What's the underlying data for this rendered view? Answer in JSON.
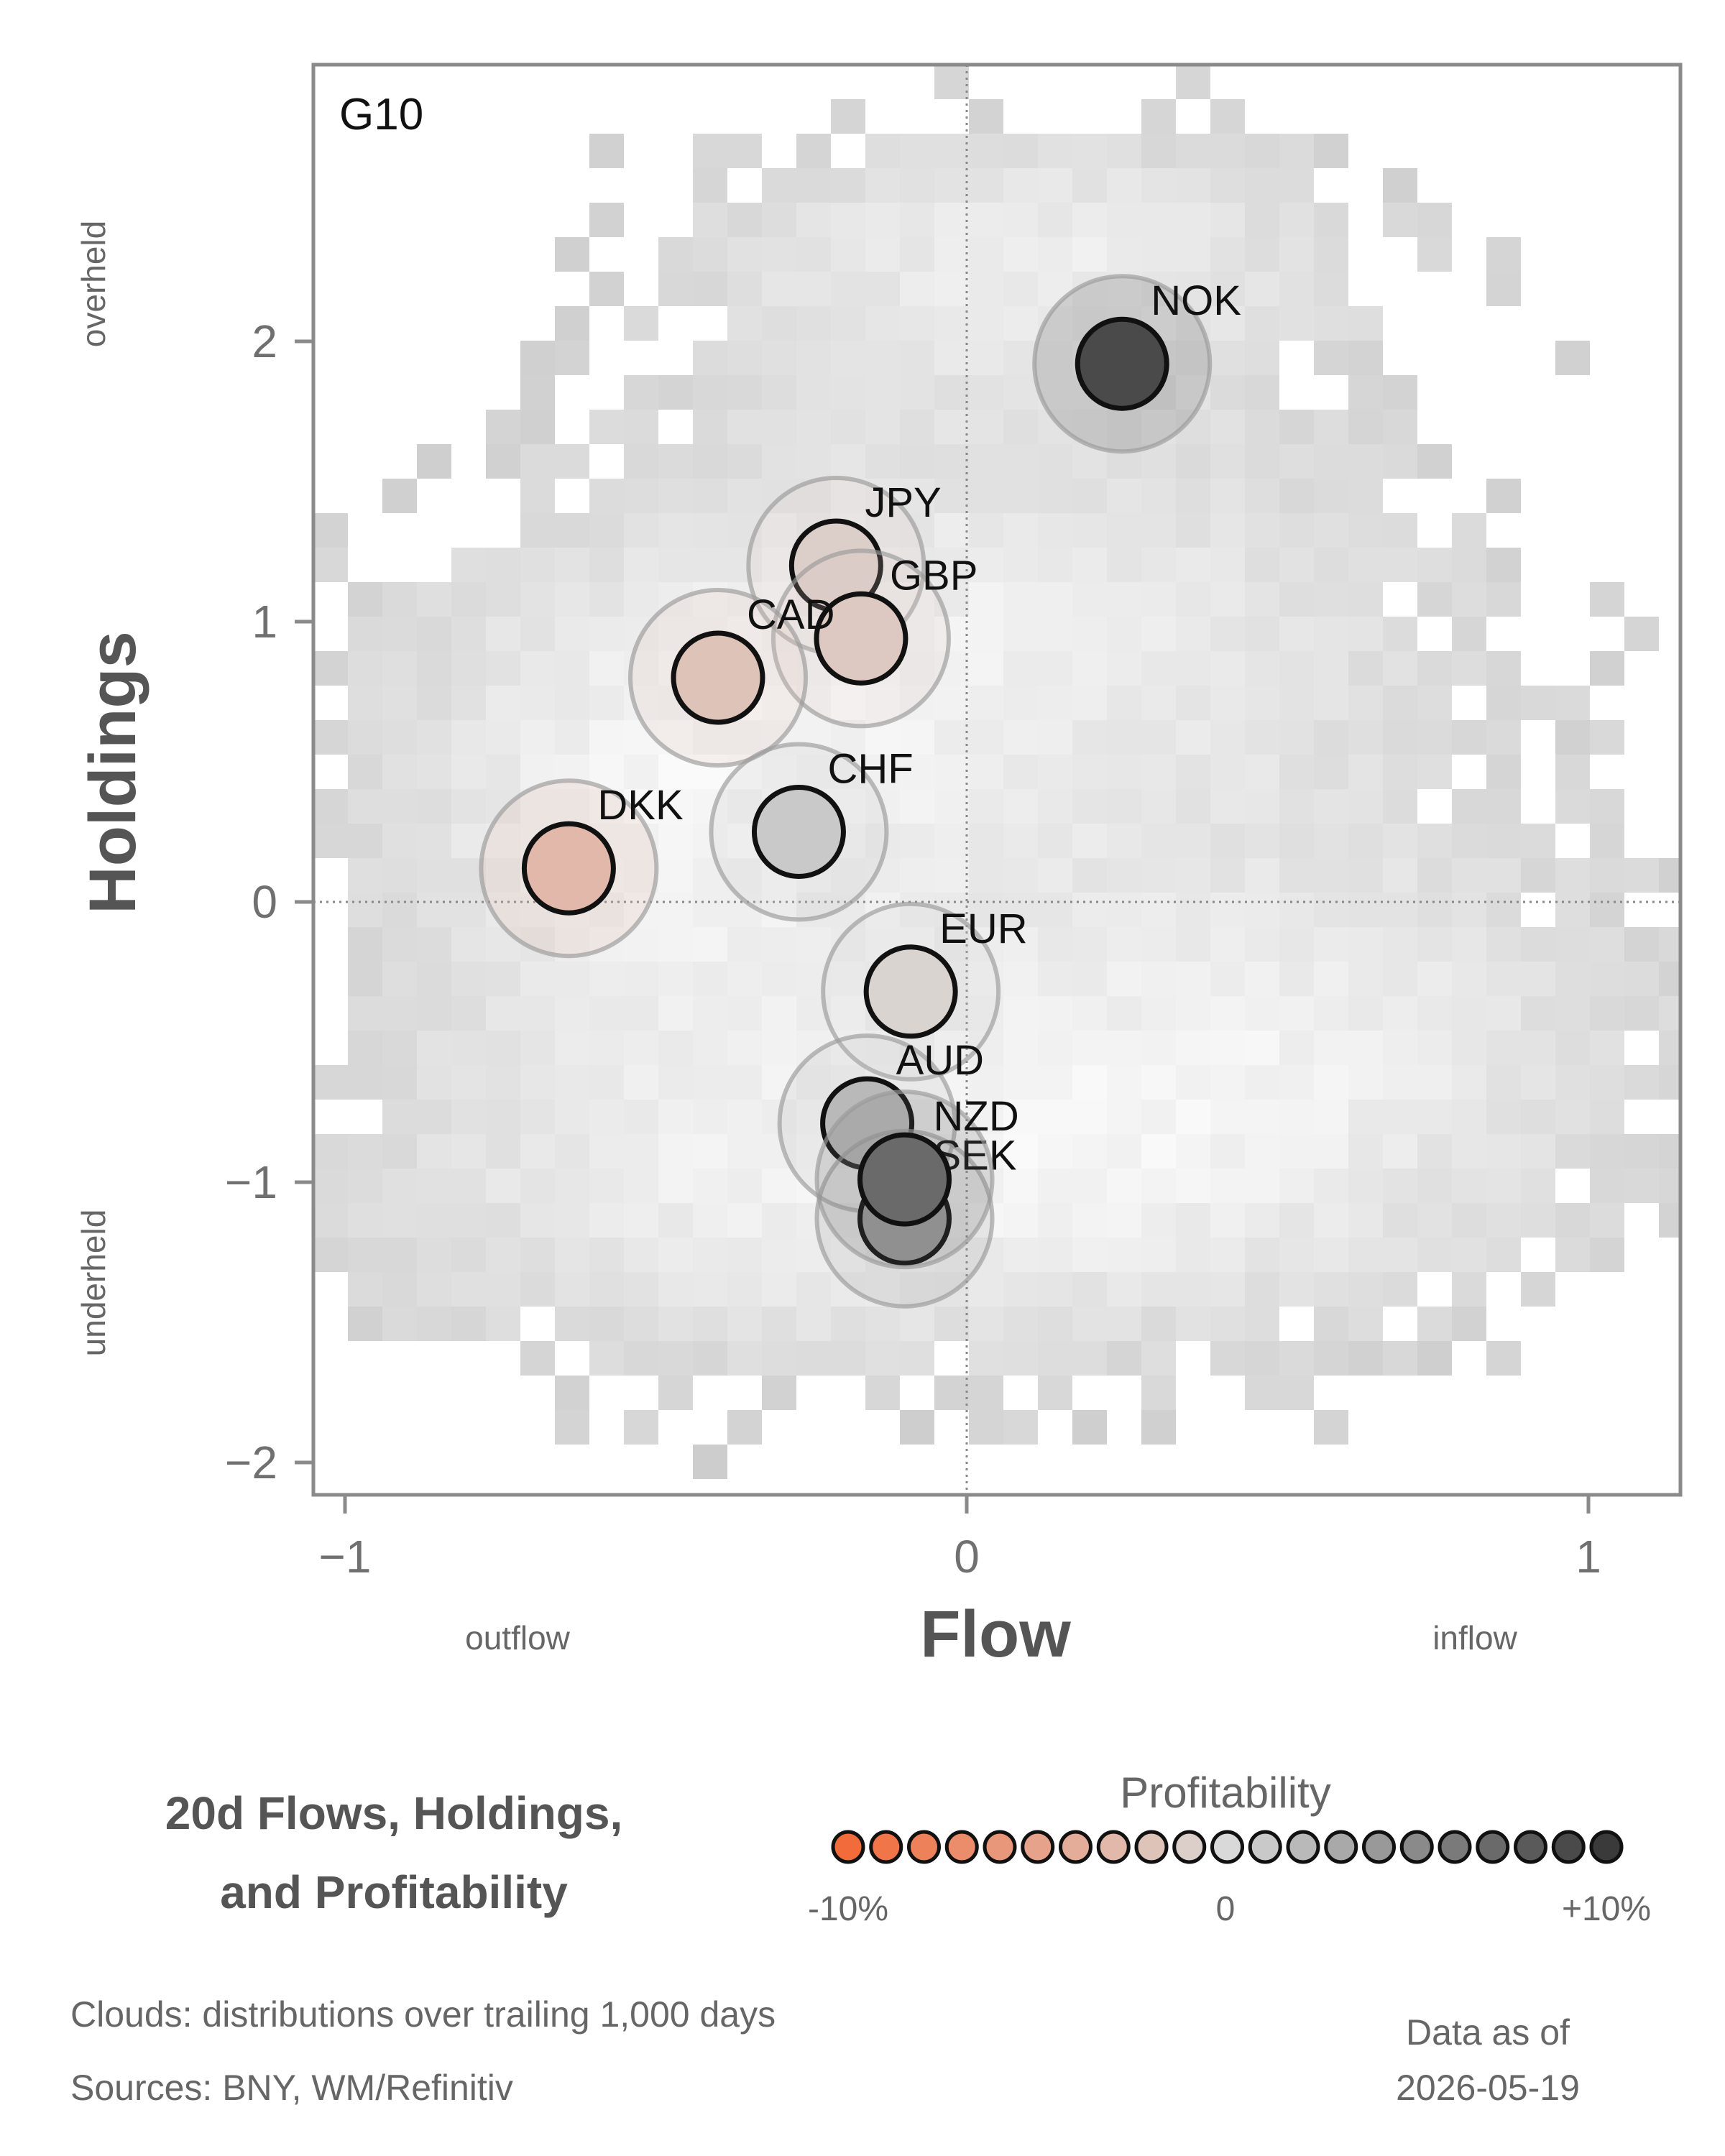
{
  "chart_data": {
    "type": "scatter",
    "panel_label": "G10",
    "xlabel": "Flow",
    "ylabel": "Holdings",
    "x_ticks": [
      -1,
      0,
      1
    ],
    "y_ticks": [
      -2,
      -1,
      0,
      1,
      2
    ],
    "xlim": [
      -1.05,
      1.15
    ],
    "ylim": [
      -2.15,
      2.98
    ],
    "x_side_labels": {
      "negative": "outflow",
      "positive": "inflow"
    },
    "y_side_labels": {
      "positive": "overheld",
      "negative": "underheld"
    },
    "reference_lines": {
      "x": 0,
      "y": 0
    },
    "points": [
      {
        "label": "NOK",
        "x": 0.25,
        "y": 1.92,
        "profitability": 9
      },
      {
        "label": "JPY",
        "x": -0.21,
        "y": 1.2,
        "profitability": -1
      },
      {
        "label": "GBP",
        "x": -0.17,
        "y": 0.94,
        "profitability": -1.5
      },
      {
        "label": "CAD",
        "x": -0.4,
        "y": 0.8,
        "profitability": -2
      },
      {
        "label": "CHF",
        "x": -0.27,
        "y": 0.25,
        "profitability": 1
      },
      {
        "label": "DKK",
        "x": -0.64,
        "y": 0.12,
        "profitability": -3
      },
      {
        "label": "EUR",
        "x": -0.09,
        "y": -0.32,
        "profitability": -0.5
      },
      {
        "label": "AUD",
        "x": -0.16,
        "y": -0.79,
        "profitability": 2
      },
      {
        "label": "SEK",
        "x": -0.1,
        "y": -1.13,
        "profitability": 4
      },
      {
        "label": "NZD",
        "x": -0.1,
        "y": -0.99,
        "profitability": 7
      }
    ],
    "colorbar": {
      "title": "Profitability",
      "min_label": "-10%",
      "mid_label": "0",
      "max_label": "+10%",
      "range": [
        -10,
        10
      ],
      "steps": 21
    },
    "colors": {
      "negative": "#f26b3a",
      "neutral": "#d9d9d9",
      "positive": "#3a3a3a",
      "cloud": "#c8c8c8"
    }
  },
  "title": {
    "line1": "20d Flows, Holdings,",
    "line2": "and Profitability"
  },
  "footer": {
    "clouds_note": "Clouds:  distributions over trailing 1,000 days",
    "sources_note": "Sources:  BNY, WM/Refinitiv",
    "asof_label": "Data as of",
    "asof_date": "2026-05-19"
  }
}
